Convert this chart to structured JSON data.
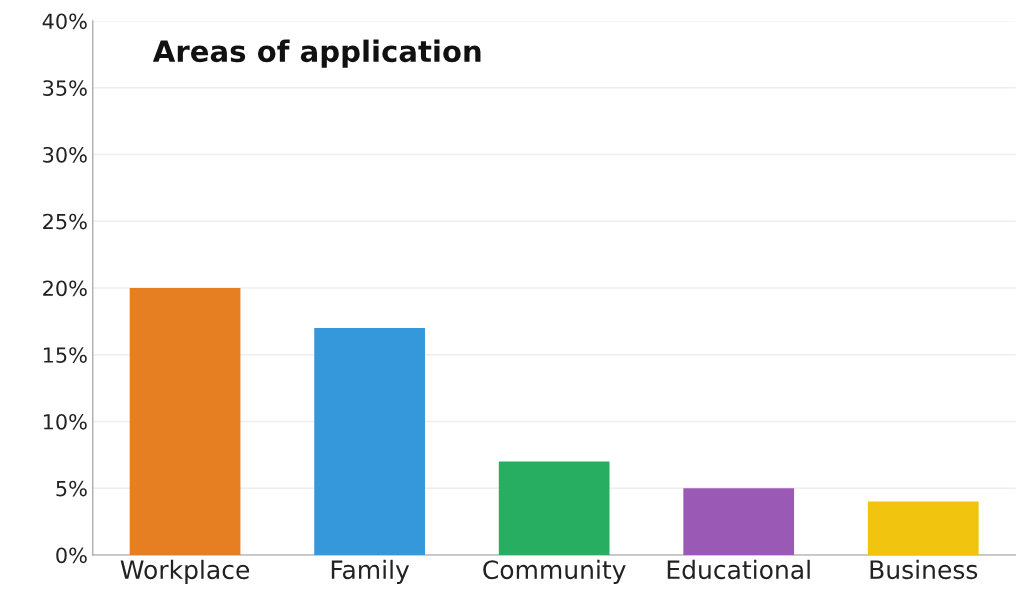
{
  "chart_data": {
    "type": "bar",
    "title": "Areas of application",
    "categories": [
      "Workplace",
      "Family",
      "Community",
      "Educational",
      "Business"
    ],
    "values": [
      20,
      17,
      7,
      5,
      4
    ],
    "colors": [
      "#e67e22",
      "#3498db",
      "#27ae60",
      "#9b59b6",
      "#f1c40f"
    ],
    "ylim": [
      0,
      40
    ],
    "yticks": [
      {
        "value": 0,
        "label": "0%"
      },
      {
        "value": 5,
        "label": "5%"
      },
      {
        "value": 10,
        "label": "10%"
      },
      {
        "value": 15,
        "label": "15%"
      },
      {
        "value": 20,
        "label": "20%"
      },
      {
        "value": 25,
        "label": "25%"
      },
      {
        "value": 30,
        "label": "30%"
      },
      {
        "value": 35,
        "label": "35%"
      },
      {
        "value": 40,
        "label": "40%"
      }
    ],
    "grid": "y",
    "legend": false
  }
}
